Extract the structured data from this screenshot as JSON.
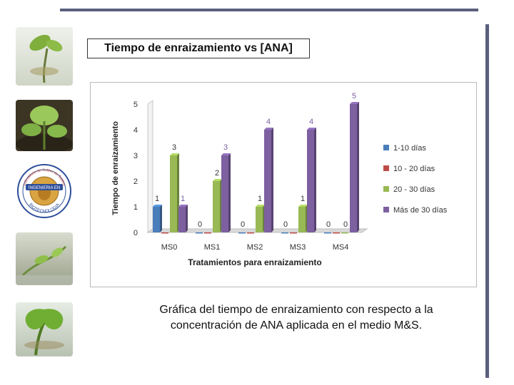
{
  "slide": {
    "title": "Tiempo de enraizamiento vs [ANA]",
    "caption_line1": "Gráfica del tiempo de enraizamiento con respecto a la",
    "caption_line2": "concentración de ANA aplicada en el medio M&S."
  },
  "logo": {
    "text_top": "Laboratorio de Cultivo de Tejidos",
    "text_band": "INGENIERIA EN",
    "text_bottom": "BIOTECNOLOGIA"
  },
  "chart_data": {
    "type": "bar",
    "categories": [
      "MS0",
      "MS1",
      "MS2",
      "MS3",
      "MS4"
    ],
    "series": [
      {
        "name": "1-10 días",
        "values": [
          1,
          0,
          0,
          0,
          0
        ],
        "color": "#4a7ebb"
      },
      {
        "name": "10 - 20 días",
        "values": [
          0,
          0,
          0,
          0,
          0
        ],
        "color": "#be4b48"
      },
      {
        "name": "20 - 30 días",
        "values": [
          3,
          2,
          1,
          1,
          0
        ],
        "color": "#98b954"
      },
      {
        "name": "Más de 30 días",
        "values": [
          1,
          3,
          4,
          4,
          5
        ],
        "color": "#7d60a0"
      }
    ],
    "xlabel": "Tratamientos para enraizamiento",
    "ylabel": "Tiempo de enraizamiento",
    "yticks": [
      "0",
      "1",
      "2",
      "3",
      "4",
      "5"
    ],
    "ylim": [
      0,
      5
    ],
    "grid": false,
    "legend_position": "right",
    "data_labels": true
  }
}
